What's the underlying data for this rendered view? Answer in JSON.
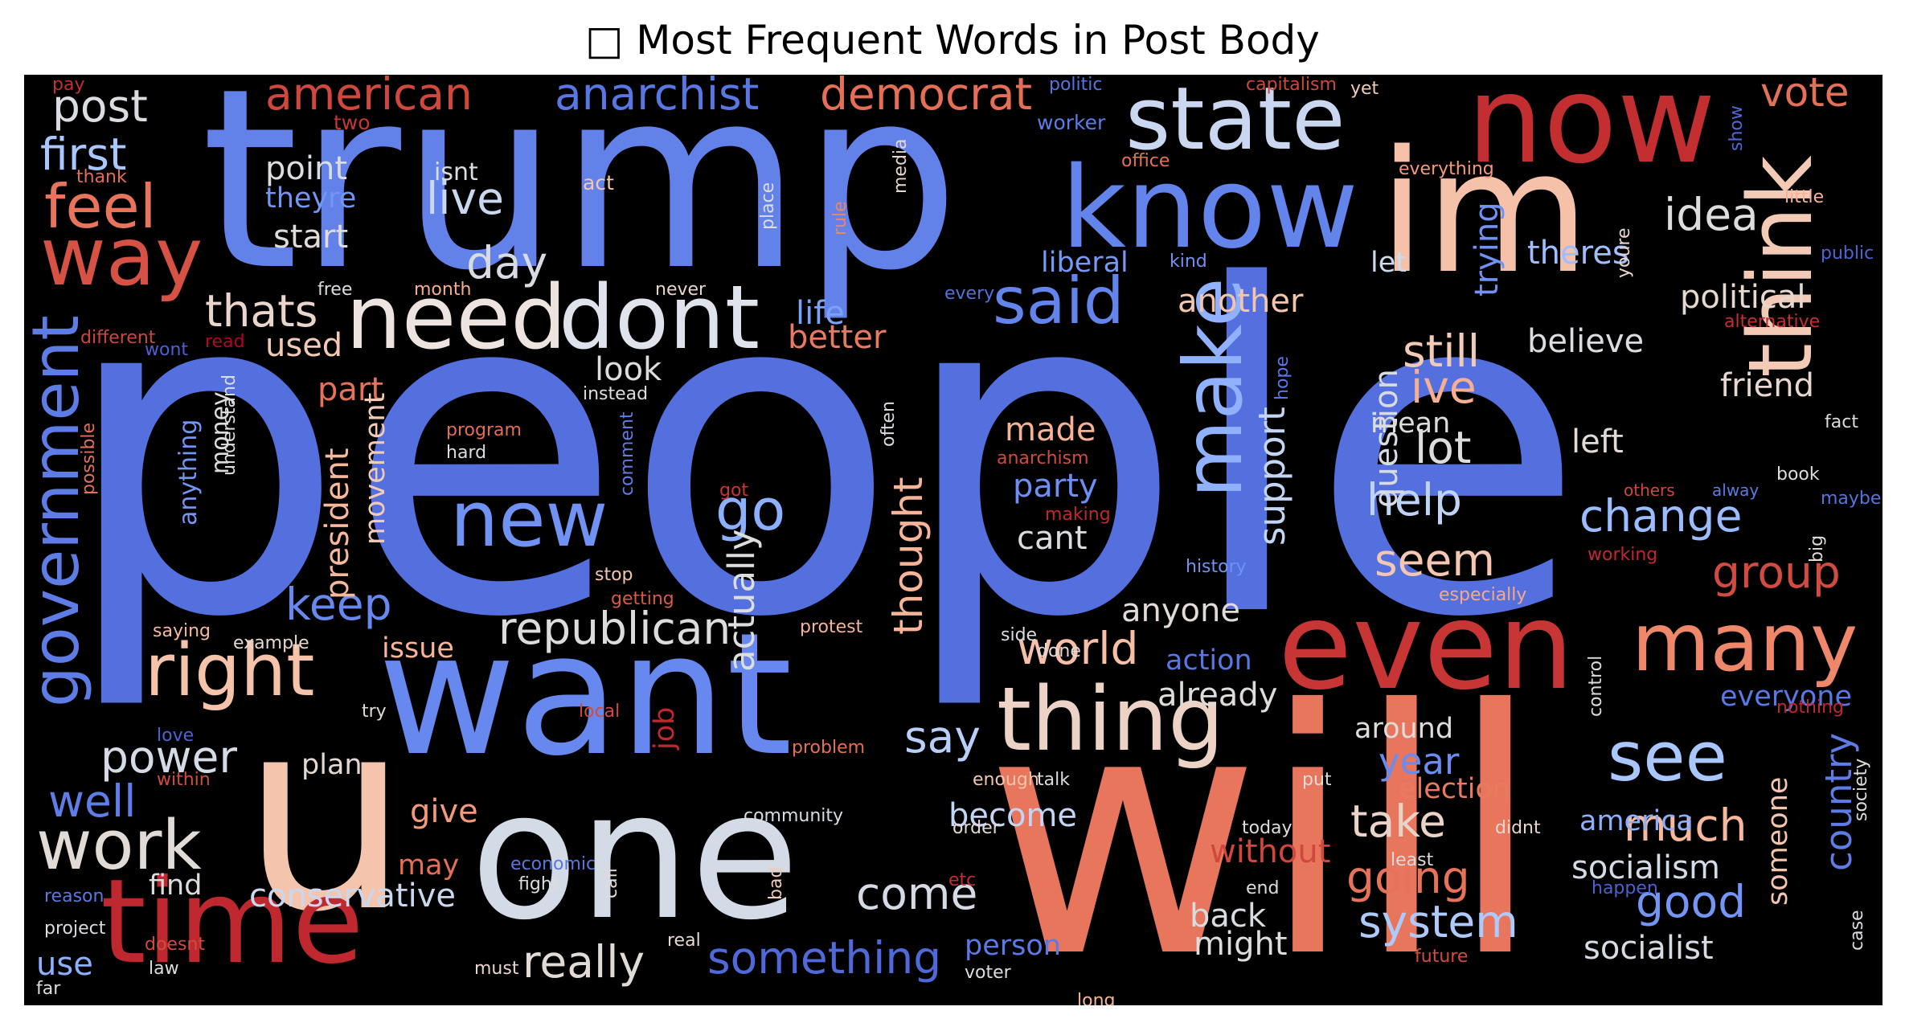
{
  "title": "□ Most Frequent Words in Post Body",
  "colors": {
    "background": "#000000",
    "palette": "coolwarm"
  },
  "words": [
    {
      "text": "people",
      "color": "#5470de"
    },
    {
      "text": "trump",
      "color": "#6282ea"
    },
    {
      "text": "will",
      "color": "#e8765c"
    },
    {
      "text": "u",
      "color": "#f5c4ac"
    },
    {
      "text": "want",
      "color": "#6788ee"
    },
    {
      "text": "one",
      "color": "#d3dbe7"
    },
    {
      "text": "im",
      "color": "#f5c1a9"
    },
    {
      "text": "time",
      "color": "#c0282f"
    },
    {
      "text": "now",
      "color": "#c32e31"
    },
    {
      "text": "know",
      "color": "#6384eb"
    },
    {
      "text": "even",
      "color": "#c73635"
    },
    {
      "text": "think",
      "color": "#f2cab5"
    },
    {
      "text": "state",
      "color": "#c9d7f0"
    },
    {
      "text": "thing",
      "color": "#ecd3c5"
    },
    {
      "text": "need",
      "color": "#ede4df"
    },
    {
      "text": "dont",
      "color": "#dfe3eb"
    },
    {
      "text": "many",
      "color": "#ef886b"
    },
    {
      "text": "make",
      "color": "#90b2fe"
    },
    {
      "text": "way",
      "color": "#d65244"
    },
    {
      "text": "see",
      "color": "#a9c6fd"
    },
    {
      "text": "new",
      "color": "#6f92f3"
    },
    {
      "text": "right",
      "color": "#f5c2aa"
    },
    {
      "text": "government",
      "color": "#5d7ce6"
    },
    {
      "text": "said",
      "color": "#6384eb"
    },
    {
      "text": "work",
      "color": "#e2dad5"
    },
    {
      "text": "feel",
      "color": "#e7745b"
    },
    {
      "text": "republican",
      "color": "#dddcdc"
    },
    {
      "text": "go",
      "color": "#8caffe"
    },
    {
      "text": "vote",
      "color": "#e57058"
    },
    {
      "text": "something",
      "color": "#4f69d9"
    },
    {
      "text": "system",
      "color": "#aec9fc"
    },
    {
      "text": "power",
      "color": "#d4dbe6"
    },
    {
      "text": "american",
      "color": "#d0473d"
    },
    {
      "text": "anarchist",
      "color": "#5977e3"
    },
    {
      "text": "democrat",
      "color": "#e46e56"
    },
    {
      "text": "post",
      "color": "#d9dce1"
    },
    {
      "text": "first",
      "color": "#aac7fd"
    },
    {
      "text": "really",
      "color": "#e2dad5"
    },
    {
      "text": "country",
      "color": "#5d7ce6"
    },
    {
      "text": "going",
      "color": "#e67259"
    },
    {
      "text": "take",
      "color": "#ead4c8"
    },
    {
      "text": "much",
      "color": "#f7b89c"
    },
    {
      "text": "good",
      "color": "#7396f5"
    },
    {
      "text": "group",
      "color": "#d24b40"
    },
    {
      "text": "change",
      "color": "#9bbcff"
    },
    {
      "text": "help",
      "color": "#bfd3f6"
    },
    {
      "text": "lot",
      "color": "#dcdddd"
    },
    {
      "text": "world",
      "color": "#f6bfa6"
    },
    {
      "text": "come",
      "color": "#d5dbe5"
    },
    {
      "text": "well",
      "color": "#5e7de7"
    },
    {
      "text": "live",
      "color": "#cad8ef"
    },
    {
      "text": "day",
      "color": "#d8dce2"
    },
    {
      "text": "thats",
      "color": "#e9d5cb"
    },
    {
      "text": "keep",
      "color": "#6788ee"
    },
    {
      "text": "thought",
      "color": "#f7b497"
    },
    {
      "text": "seem",
      "color": "#f3c7b1"
    },
    {
      "text": "say",
      "color": "#b7cff9"
    },
    {
      "text": "still",
      "color": "#f2cbb7"
    },
    {
      "text": "ive",
      "color": "#f7af91"
    },
    {
      "text": "year",
      "color": "#6a8bef"
    },
    {
      "text": "idea",
      "color": "#dcdddd"
    },
    {
      "text": "theres",
      "color": "#9ebeff"
    },
    {
      "text": "support",
      "color": "#c3d5f4"
    },
    {
      "text": "political",
      "color": "#e6d7cf"
    },
    {
      "text": "socialist",
      "color": "#d6dce4"
    },
    {
      "text": "socialism",
      "color": "#d3dbe7"
    },
    {
      "text": "conservative",
      "color": "#cad8ef"
    },
    {
      "text": "back",
      "color": "#d8dce2"
    },
    {
      "text": "life",
      "color": "#7da0f9"
    },
    {
      "text": "better",
      "color": "#e97a5f"
    },
    {
      "text": "another",
      "color": "#f4c5ad"
    },
    {
      "text": "liberal",
      "color": "#7699f6"
    },
    {
      "text": "point",
      "color": "#dadce0"
    },
    {
      "text": "theyre",
      "color": "#7396f5"
    },
    {
      "text": "start",
      "color": "#e0dbd8"
    },
    {
      "text": "used",
      "color": "#f2c9b4"
    },
    {
      "text": "part",
      "color": "#e67259"
    },
    {
      "text": "look",
      "color": "#dedcdb"
    },
    {
      "text": "actually",
      "color": "#dcdddd"
    },
    {
      "text": "party",
      "color": "#6c8ff1"
    },
    {
      "text": "cant",
      "color": "#dadce0"
    },
    {
      "text": "made",
      "color": "#f7b194"
    },
    {
      "text": "question",
      "color": "#d8dce2"
    },
    {
      "text": "mean",
      "color": "#dddcdc"
    },
    {
      "text": "left",
      "color": "#e2dad5"
    },
    {
      "text": "friend",
      "color": "#e7d7ce"
    },
    {
      "text": "believe",
      "color": "#dadce0"
    },
    {
      "text": "trying",
      "color": "#6f92f3"
    },
    {
      "text": "let",
      "color": "#cdd9ec"
    },
    {
      "text": "president",
      "color": "#f7b89c"
    },
    {
      "text": "movement",
      "color": "#f2cab5"
    },
    {
      "text": "anything",
      "color": "#7396f5"
    },
    {
      "text": "money",
      "color": "#dddcdc"
    },
    {
      "text": "issue",
      "color": "#f7b497"
    },
    {
      "text": "anyone",
      "color": "#e1dad6"
    },
    {
      "text": "action",
      "color": "#5977e3"
    },
    {
      "text": "already",
      "color": "#dfdbd9"
    },
    {
      "text": "around",
      "color": "#e0dbd8"
    },
    {
      "text": "america",
      "color": "#8caffe"
    },
    {
      "text": "someone",
      "color": "#f4c5ad"
    },
    {
      "text": "everyone",
      "color": "#5a78e4"
    },
    {
      "text": "election",
      "color": "#e97a5f"
    },
    {
      "text": "without",
      "color": "#d0473d"
    },
    {
      "text": "might",
      "color": "#dcdddd"
    },
    {
      "text": "become",
      "color": "#c3d5f4"
    },
    {
      "text": "give",
      "color": "#f49a7b"
    },
    {
      "text": "find",
      "color": "#dadce0"
    },
    {
      "text": "plan",
      "color": "#e4d9d2"
    },
    {
      "text": "may",
      "color": "#e46e56"
    },
    {
      "text": "job",
      "color": "#c0282f"
    },
    {
      "text": "person",
      "color": "#5b7ae5"
    },
    {
      "text": "use",
      "color": "#8db0fe"
    },
    {
      "text": "isnt",
      "color": "#dadce0"
    },
    {
      "text": "two",
      "color": "#c73635"
    },
    {
      "text": "pay",
      "color": "#c43032"
    },
    {
      "text": "thank",
      "color": "#e36c55"
    },
    {
      "text": "politic",
      "color": "#5673e0"
    },
    {
      "text": "capitalism",
      "color": "#d0473d"
    },
    {
      "text": "yet",
      "color": "#f2cbb7"
    },
    {
      "text": "worker",
      "color": "#5d7ce6"
    },
    {
      "text": "office",
      "color": "#e57058"
    },
    {
      "text": "act",
      "color": "#f3c7b1"
    },
    {
      "text": "place",
      "color": "#dedcdb"
    },
    {
      "text": "rule",
      "color": "#ee8468"
    },
    {
      "text": "media",
      "color": "#e8d6cc"
    },
    {
      "text": "everything",
      "color": "#f49a7b"
    },
    {
      "text": "show",
      "color": "#4f69d9"
    },
    {
      "text": "little",
      "color": "#f7b396"
    },
    {
      "text": "youre",
      "color": "#e9d5cb"
    },
    {
      "text": "public",
      "color": "#4b64d5"
    },
    {
      "text": "kind",
      "color": "#6f92f3"
    },
    {
      "text": "free",
      "color": "#dadce0"
    },
    {
      "text": "month",
      "color": "#f7ad90"
    },
    {
      "text": "never",
      "color": "#e9d5cb"
    },
    {
      "text": "every",
      "color": "#5470de"
    },
    {
      "text": "alternative",
      "color": "#c32e31"
    },
    {
      "text": "different",
      "color": "#cf453c"
    },
    {
      "text": "read",
      "color": "#b40426"
    },
    {
      "text": "wont",
      "color": "#4961d2"
    },
    {
      "text": "instead",
      "color": "#dcdddd"
    },
    {
      "text": "often",
      "color": "#d8dce2"
    },
    {
      "text": "hope",
      "color": "#5a78e4"
    },
    {
      "text": "possible",
      "color": "#e57058"
    },
    {
      "text": "understand",
      "color": "#dcdddd"
    },
    {
      "text": "program",
      "color": "#e36c55"
    },
    {
      "text": "hard",
      "color": "#dadce0"
    },
    {
      "text": "comment",
      "color": "#5d7ce6"
    },
    {
      "text": "anarchism",
      "color": "#d24b40"
    },
    {
      "text": "making",
      "color": "#c0282f"
    },
    {
      "text": "got",
      "color": "#c73635"
    },
    {
      "text": "fact",
      "color": "#dddcdc"
    },
    {
      "text": "book",
      "color": "#e0dbd8"
    },
    {
      "text": "maybe",
      "color": "#5673e0"
    },
    {
      "text": "working",
      "color": "#c0282f"
    },
    {
      "text": "big",
      "color": "#e2dad5"
    },
    {
      "text": "history",
      "color": "#6f92f3"
    },
    {
      "text": "especially",
      "color": "#f7a889"
    },
    {
      "text": "stop",
      "color": "#f4c5ad"
    },
    {
      "text": "getting",
      "color": "#d95847"
    },
    {
      "text": "saying",
      "color": "#f7b89c"
    },
    {
      "text": "example",
      "color": "#e7d7ce"
    },
    {
      "text": "protest",
      "color": "#f7b194"
    },
    {
      "text": "side",
      "color": "#dadce0"
    },
    {
      "text": "done",
      "color": "#dfdbd9"
    },
    {
      "text": "control",
      "color": "#dddcdc"
    },
    {
      "text": "nothing",
      "color": "#c0282f"
    },
    {
      "text": "try",
      "color": "#e2dad5"
    },
    {
      "text": "local",
      "color": "#d24b40"
    },
    {
      "text": "love",
      "color": "#4b64d5"
    },
    {
      "text": "within",
      "color": "#d24b40"
    },
    {
      "text": "problem",
      "color": "#e46e56"
    },
    {
      "text": "enough",
      "color": "#f4c5ad"
    },
    {
      "text": "talk",
      "color": "#dadce0"
    },
    {
      "text": "put",
      "color": "#dcdddd"
    },
    {
      "text": "community",
      "color": "#d6dce4"
    },
    {
      "text": "order",
      "color": "#e4d9d2"
    },
    {
      "text": "etc",
      "color": "#c32e31"
    },
    {
      "text": "today",
      "color": "#dcdddd"
    },
    {
      "text": "didnt",
      "color": "#e8d6cc"
    },
    {
      "text": "least",
      "color": "#dadce0"
    },
    {
      "text": "end",
      "color": "#e0dbd8"
    },
    {
      "text": "happen",
      "color": "#4961d2"
    },
    {
      "text": "society",
      "color": "#dddcdc"
    },
    {
      "text": "reason",
      "color": "#5a78e4"
    },
    {
      "text": "economic",
      "color": "#5977e3"
    },
    {
      "text": "fight",
      "color": "#dcdddd"
    },
    {
      "text": "call",
      "color": "#e0dbd8"
    },
    {
      "text": "bad",
      "color": "#f2cbb7"
    },
    {
      "text": "project",
      "color": "#dadce0"
    },
    {
      "text": "doesnt",
      "color": "#d24b40"
    },
    {
      "text": "law",
      "color": "#dfdbd9"
    },
    {
      "text": "real",
      "color": "#e7d7ce"
    },
    {
      "text": "voter",
      "color": "#dadce0"
    },
    {
      "text": "must",
      "color": "#e9d5cb"
    },
    {
      "text": "far",
      "color": "#dddcdc"
    },
    {
      "text": "long",
      "color": "#f7b396"
    },
    {
      "text": "future",
      "color": "#d24b40"
    },
    {
      "text": "case",
      "color": "#dadce0"
    },
    {
      "text": "others",
      "color": "#d0473d"
    },
    {
      "text": "alway",
      "color": "#5b7ae5"
    }
  ]
}
